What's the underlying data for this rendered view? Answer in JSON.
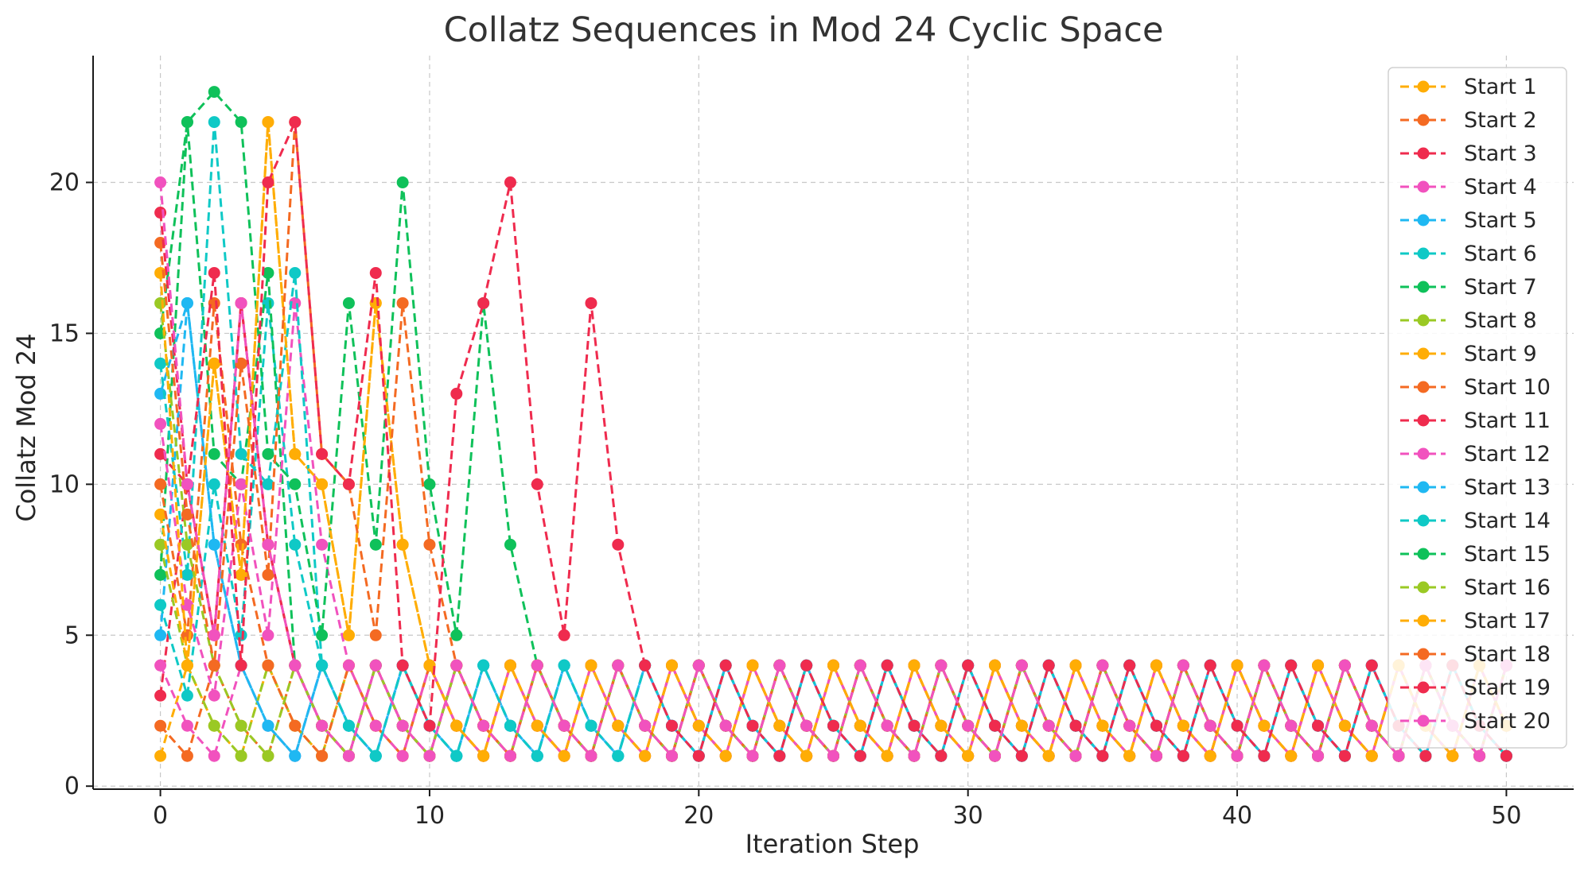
{
  "chart_data": {
    "type": "line",
    "title": "Collatz Sequences in Mod 24 Cyclic Space",
    "xlabel": "Iteration Step",
    "ylabel": "Collatz Mod 24",
    "xlim": [
      -2.5,
      52.5
    ],
    "ylim": [
      -0.1,
      24.2
    ],
    "xticks": [
      0,
      10,
      20,
      30,
      40,
      50
    ],
    "yticks": [
      0,
      5,
      10,
      15,
      20
    ],
    "grid": true,
    "legend_position": "top-right",
    "colors": [
      "#ffad05",
      "#f46a22",
      "#ef2b4e",
      "#f152be",
      "#1fb8f2",
      "#0fc9c6",
      "#0fc15a",
      "#9ac924"
    ],
    "series": [
      {
        "name": "Start 1",
        "values": [
          1,
          4,
          2,
          1,
          4,
          2,
          1,
          4,
          2,
          1,
          4,
          2,
          1,
          4,
          2,
          1,
          4,
          2,
          1,
          4,
          2,
          1,
          4,
          2,
          1,
          4,
          2,
          1,
          4,
          2,
          1,
          4,
          2,
          1,
          4,
          2,
          1,
          4,
          2,
          1,
          4,
          2,
          1,
          4,
          2,
          1,
          4,
          2,
          1,
          4,
          2
        ]
      },
      {
        "name": "Start 2",
        "values": [
          2,
          1,
          4,
          2,
          1,
          4,
          2,
          1,
          4,
          2,
          1,
          4,
          2,
          1,
          4,
          2,
          1,
          4,
          2,
          1,
          4,
          2,
          1,
          4,
          2,
          1,
          4,
          2,
          1,
          4,
          2,
          1,
          4,
          2,
          1,
          4,
          2,
          1,
          4,
          2,
          1,
          4,
          2,
          1,
          4,
          2,
          1,
          4,
          2,
          1,
          4
        ]
      },
      {
        "name": "Start 3",
        "values": [
          3,
          10,
          5,
          16,
          8,
          4,
          2,
          1,
          4,
          2,
          1,
          4,
          2,
          1,
          4,
          2,
          1,
          4,
          2,
          1,
          4,
          2,
          1,
          4,
          2,
          1,
          4,
          2,
          1,
          4,
          2,
          1,
          4,
          2,
          1,
          4,
          2,
          1,
          4,
          2,
          1,
          4,
          2,
          1,
          4,
          2,
          1,
          4,
          2,
          1,
          4
        ]
      },
      {
        "name": "Start 4",
        "values": [
          4,
          2,
          1,
          4,
          2,
          1,
          4,
          2,
          1,
          4,
          2,
          1,
          4,
          2,
          1,
          4,
          2,
          1,
          4,
          2,
          1,
          4,
          2,
          1,
          4,
          2,
          1,
          4,
          2,
          1,
          4,
          2,
          1,
          4,
          2,
          1,
          4,
          2,
          1,
          4,
          2,
          1,
          4,
          2,
          1,
          4,
          2,
          1,
          4,
          2,
          1
        ]
      },
      {
        "name": "Start 5",
        "values": [
          5,
          16,
          8,
          4,
          2,
          1,
          4,
          2,
          1,
          4,
          2,
          1,
          4,
          2,
          1,
          4,
          2,
          1,
          4,
          2,
          1,
          4,
          2,
          1,
          4,
          2,
          1,
          4,
          2,
          1,
          4,
          2,
          1,
          4,
          2,
          1,
          4,
          2,
          1,
          4,
          2,
          1,
          4,
          2,
          1,
          4,
          2,
          1,
          4,
          2,
          1
        ]
      },
      {
        "name": "Start 6",
        "values": [
          6,
          3,
          10,
          5,
          16,
          8,
          4,
          2,
          1,
          4,
          2,
          1,
          4,
          2,
          1,
          4,
          2,
          1,
          4,
          2,
          1,
          4,
          2,
          1,
          4,
          2,
          1,
          4,
          2,
          1,
          4,
          2,
          1,
          4,
          2,
          1,
          4,
          2,
          1,
          4,
          2,
          1,
          4,
          2,
          1,
          4,
          2,
          1,
          4,
          2,
          1
        ]
      },
      {
        "name": "Start 7",
        "values": [
          7,
          22,
          11,
          10,
          17,
          4,
          2,
          1,
          4,
          2,
          1,
          4,
          2,
          1,
          4,
          2,
          1,
          4,
          2,
          1,
          4,
          2,
          1,
          4,
          2,
          1,
          4,
          2,
          1,
          4,
          2,
          1,
          4,
          2,
          1,
          4,
          2,
          1,
          4,
          2,
          1,
          4,
          2,
          1,
          4,
          2,
          1,
          4,
          2,
          1,
          4
        ]
      },
      {
        "name": "Start 8",
        "values": [
          8,
          4,
          2,
          1,
          4,
          2,
          1,
          4,
          2,
          1,
          4,
          2,
          1,
          4,
          2,
          1,
          4,
          2,
          1,
          4,
          2,
          1,
          4,
          2,
          1,
          4,
          2,
          1,
          4,
          2,
          1,
          4,
          2,
          1,
          4,
          2,
          1,
          4,
          2,
          1,
          4,
          2,
          1,
          4,
          2,
          1,
          4,
          2,
          1,
          4,
          2
        ]
      },
      {
        "name": "Start 9",
        "values": [
          9,
          4,
          14,
          7,
          22,
          11,
          10,
          5,
          16,
          8,
          4,
          2,
          1,
          4,
          2,
          1,
          4,
          2,
          1,
          4,
          2,
          1,
          4,
          2,
          1,
          4,
          2,
          1,
          4,
          2,
          1,
          4,
          2,
          1,
          4,
          2,
          1,
          4,
          2,
          1,
          4,
          2,
          1,
          4,
          2,
          1,
          4,
          2,
          1,
          4,
          2
        ]
      },
      {
        "name": "Start 10",
        "values": [
          10,
          5,
          16,
          8,
          4,
          2,
          1,
          4,
          2,
          1,
          4,
          2,
          1,
          4,
          2,
          1,
          4,
          2,
          1,
          4,
          2,
          1,
          4,
          2,
          1,
          4,
          2,
          1,
          4,
          2,
          1,
          4,
          2,
          1,
          4,
          2,
          1,
          4,
          2,
          1,
          4,
          2,
          1,
          4,
          2,
          1,
          4,
          2,
          1,
          4,
          2
        ]
      },
      {
        "name": "Start 11",
        "values": [
          11,
          10,
          5,
          16,
          8,
          4,
          2,
          1,
          4,
          2,
          1,
          4,
          2,
          1,
          4,
          2,
          1,
          4,
          2,
          1,
          4,
          2,
          1,
          4,
          2,
          1,
          4,
          2,
          1,
          4,
          2,
          1,
          4,
          2,
          1,
          4,
          2,
          1,
          4,
          2,
          1,
          4,
          2,
          1,
          4,
          2,
          1,
          4,
          2,
          1,
          4
        ]
      },
      {
        "name": "Start 12",
        "values": [
          12,
          6,
          3,
          10,
          5,
          16,
          8,
          4,
          2,
          1,
          4,
          2,
          1,
          4,
          2,
          1,
          4,
          2,
          1,
          4,
          2,
          1,
          4,
          2,
          1,
          4,
          2,
          1,
          4,
          2,
          1,
          4,
          2,
          1,
          4,
          2,
          1,
          4,
          2,
          1,
          4,
          2,
          1,
          4,
          2,
          1,
          4,
          2,
          1,
          4,
          2
        ]
      },
      {
        "name": "Start 13",
        "values": [
          13,
          16,
          8,
          4,
          2,
          1,
          4,
          2,
          1,
          4,
          2,
          1,
          4,
          2,
          1,
          4,
          2,
          1,
          4,
          2,
          1,
          4,
          2,
          1,
          4,
          2,
          1,
          4,
          2,
          1,
          4,
          2,
          1,
          4,
          2,
          1,
          4,
          2,
          1,
          4,
          2,
          1,
          4,
          2,
          1,
          4,
          2,
          1,
          4,
          2,
          1
        ]
      },
      {
        "name": "Start 14",
        "values": [
          14,
          7,
          22,
          11,
          10,
          17,
          4,
          2,
          1,
          4,
          2,
          1,
          4,
          2,
          1,
          4,
          2,
          1,
          4,
          2,
          1,
          4,
          2,
          1,
          4,
          2,
          1,
          4,
          2,
          1,
          4,
          2,
          1,
          4,
          2,
          1,
          4,
          2,
          1,
          4,
          2,
          1,
          4,
          2,
          1,
          4,
          2,
          1,
          4,
          2,
          1
        ]
      },
      {
        "name": "Start 15",
        "values": [
          15,
          22,
          23,
          22,
          11,
          10,
          5,
          16,
          8,
          20,
          10,
          5,
          16,
          8,
          4,
          2,
          1,
          4,
          2,
          1,
          4,
          2,
          1,
          4,
          2,
          1,
          4,
          2,
          1,
          4,
          2,
          1,
          4,
          2,
          1,
          4,
          2,
          1,
          4,
          2,
          1,
          4,
          2,
          1,
          4,
          2,
          1,
          4,
          2,
          1,
          4
        ]
      },
      {
        "name": "Start 16",
        "values": [
          16,
          8,
          4,
          2,
          1,
          4,
          2,
          1,
          4,
          2,
          1,
          4,
          2,
          1,
          4,
          2,
          1,
          4,
          2,
          1,
          4,
          2,
          1,
          4,
          2,
          1,
          4,
          2,
          1,
          4,
          2,
          1,
          4,
          2,
          1,
          4,
          2,
          1,
          4,
          2,
          1,
          4,
          2,
          1,
          4,
          2,
          1,
          4,
          2,
          1,
          4
        ]
      },
      {
        "name": "Start 17",
        "values": [
          17,
          4,
          14,
          7,
          22,
          11,
          10,
          5,
          16,
          8,
          4,
          2,
          1,
          4,
          2,
          1,
          4,
          2,
          1,
          4,
          2,
          1,
          4,
          2,
          1,
          4,
          2,
          1,
          4,
          2,
          1,
          4,
          2,
          1,
          4,
          2,
          1,
          4,
          2,
          1,
          4,
          2,
          1,
          4,
          2,
          1,
          4,
          2,
          1,
          4,
          2
        ]
      },
      {
        "name": "Start 18",
        "values": [
          18,
          9,
          4,
          14,
          7,
          22,
          11,
          10,
          5,
          16,
          8,
          4,
          2,
          1,
          4,
          2,
          1,
          4,
          2,
          1,
          4,
          2,
          1,
          4,
          2,
          1,
          4,
          2,
          1,
          4,
          2,
          1,
          4,
          2,
          1,
          4,
          2,
          1,
          4,
          2,
          1,
          4,
          2,
          1,
          4,
          2,
          1,
          4,
          2,
          1,
          4
        ]
      },
      {
        "name": "Start 19",
        "values": [
          19,
          10,
          17,
          4,
          20,
          22,
          11,
          10,
          17,
          4,
          2,
          13,
          16,
          20,
          10,
          5,
          16,
          8,
          4,
          2,
          1,
          4,
          2,
          1,
          4,
          2,
          1,
          4,
          2,
          1,
          4,
          2,
          1,
          4,
          2,
          1,
          4,
          2,
          1,
          4,
          2,
          1,
          4,
          2,
          1,
          4,
          2,
          1,
          4,
          2,
          1
        ]
      },
      {
        "name": "Start 20",
        "values": [
          20,
          10,
          5,
          16,
          8,
          4,
          2,
          1,
          4,
          2,
          1,
          4,
          2,
          1,
          4,
          2,
          1,
          4,
          2,
          1,
          4,
          2,
          1,
          4,
          2,
          1,
          4,
          2,
          1,
          4,
          2,
          1,
          4,
          2,
          1,
          4,
          2,
          1,
          4,
          2,
          1,
          4,
          2,
          1,
          4,
          2,
          1,
          4,
          2,
          1,
          4
        ]
      }
    ]
  }
}
